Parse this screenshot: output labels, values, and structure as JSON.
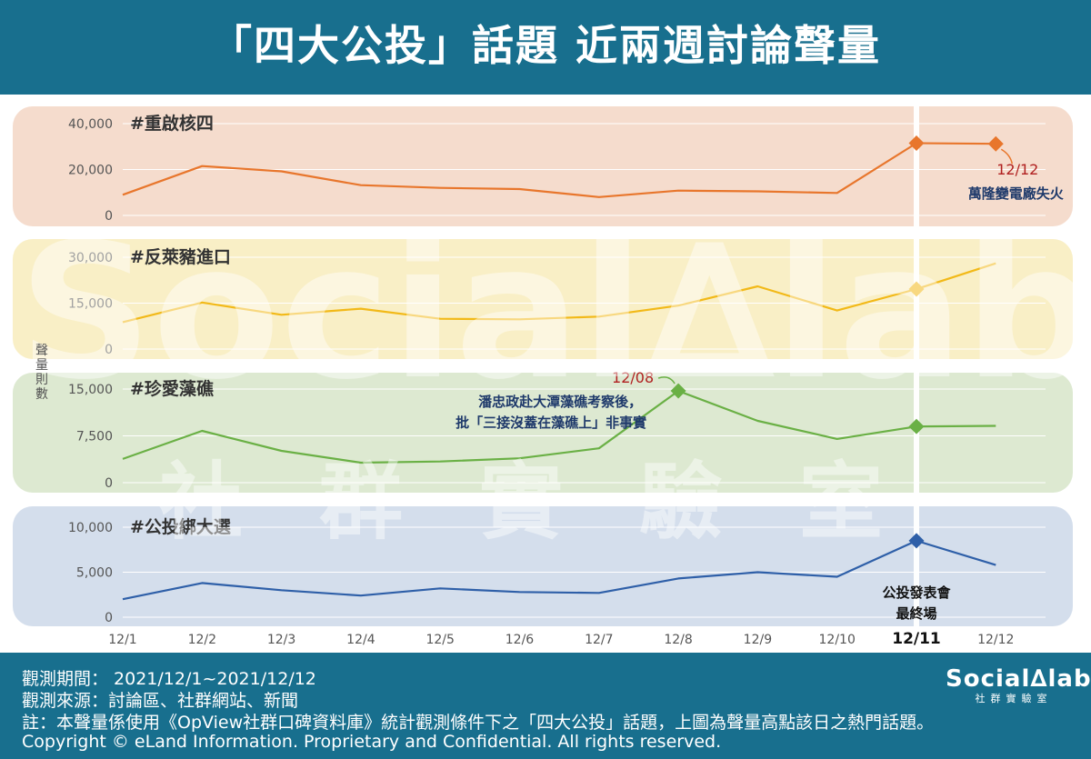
{
  "header": {
    "title": "「四大公投」話題  近兩週討論聲量"
  },
  "y_label_vertical": "聲量則數",
  "watermark": {
    "brand": "Social∆lab",
    "subtitle": "社群實驗室"
  },
  "footer": {
    "period": "觀測期間： 2021/12/1~2021/12/12",
    "source": "觀測來源：討論區、社群網站、新聞",
    "note": "註：本聲量係使用《OpView社群口碑資料庫》統計觀測條件下之「四大公投」話題，上圖為聲量高點該日之熱門話題。",
    "copyright": "Copyright © eLand Information. Proprietary and Confidential. All rights reserved.",
    "brand": "Social∆lab",
    "brand_sub": "社群實驗室"
  },
  "chart_data": {
    "type": "line",
    "categories": [
      "12/1",
      "12/2",
      "12/3",
      "12/4",
      "12/5",
      "12/6",
      "12/7",
      "12/8",
      "12/9",
      "12/10",
      "12/11",
      "12/12"
    ],
    "highlight_category": "12/11",
    "colors": {
      "highlight": "#ffffff"
    },
    "panels": [
      {
        "name": "#重啟核四",
        "color": "#e8762c",
        "bg": "#f5dccd",
        "ylim": [
          0,
          40000
        ],
        "ticks": [
          "40,000",
          "20,000",
          "0"
        ],
        "tick_values": [
          40000,
          20000,
          0
        ],
        "values": [
          9000,
          21500,
          19200,
          13200,
          12000,
          11500,
          8000,
          10800,
          10500,
          9800,
          31500,
          31200
        ],
        "markers": [
          10,
          11
        ],
        "annotations": [
          {
            "index": 11,
            "label": "12/12",
            "text": "萬隆變電廠失火"
          }
        ]
      },
      {
        "name": "#反萊豬進口",
        "color": "#f2b918",
        "bg": "#f9efc6",
        "ylim": [
          0,
          30000
        ],
        "ticks": [
          "30,000",
          "15,000",
          "0"
        ],
        "tick_values": [
          30000,
          15000,
          0
        ],
        "values": [
          8800,
          15200,
          11200,
          13200,
          9900,
          9700,
          10600,
          14200,
          20500,
          12600,
          19600,
          28000
        ],
        "markers": [
          10
        ],
        "annotations": []
      },
      {
        "name": "#珍愛藻礁",
        "color": "#6ab045",
        "bg": "#dde9d1",
        "ylim": [
          0,
          15000
        ],
        "ticks": [
          "15,000",
          "7,500",
          "0"
        ],
        "tick_values": [
          15000,
          7500,
          0
        ],
        "values": [
          3800,
          8300,
          5100,
          3200,
          3400,
          3900,
          5500,
          14700,
          9900,
          7000,
          9000,
          9100
        ],
        "markers": [
          7,
          10
        ],
        "annotations": [
          {
            "index": 7,
            "label": "12/08",
            "text": "潘忠政赴大潭藻礁考察後，",
            "text2": "批「三接沒蓋在藻礁上」非事實"
          }
        ]
      },
      {
        "name": "#公投綁大選",
        "color": "#2e5fa8",
        "bg": "#d4deec",
        "ylim": [
          0,
          10000
        ],
        "ticks": [
          "10,000",
          "5,000",
          "0"
        ],
        "tick_values": [
          10000,
          5000,
          0
        ],
        "values": [
          2000,
          3800,
          3000,
          2400,
          3200,
          2800,
          2700,
          4300,
          5000,
          4500,
          8500,
          5800
        ],
        "markers": [
          10
        ],
        "annotations": [
          {
            "index": 10,
            "text": "公投發表會",
            "text2": "最終場"
          }
        ]
      }
    ]
  }
}
